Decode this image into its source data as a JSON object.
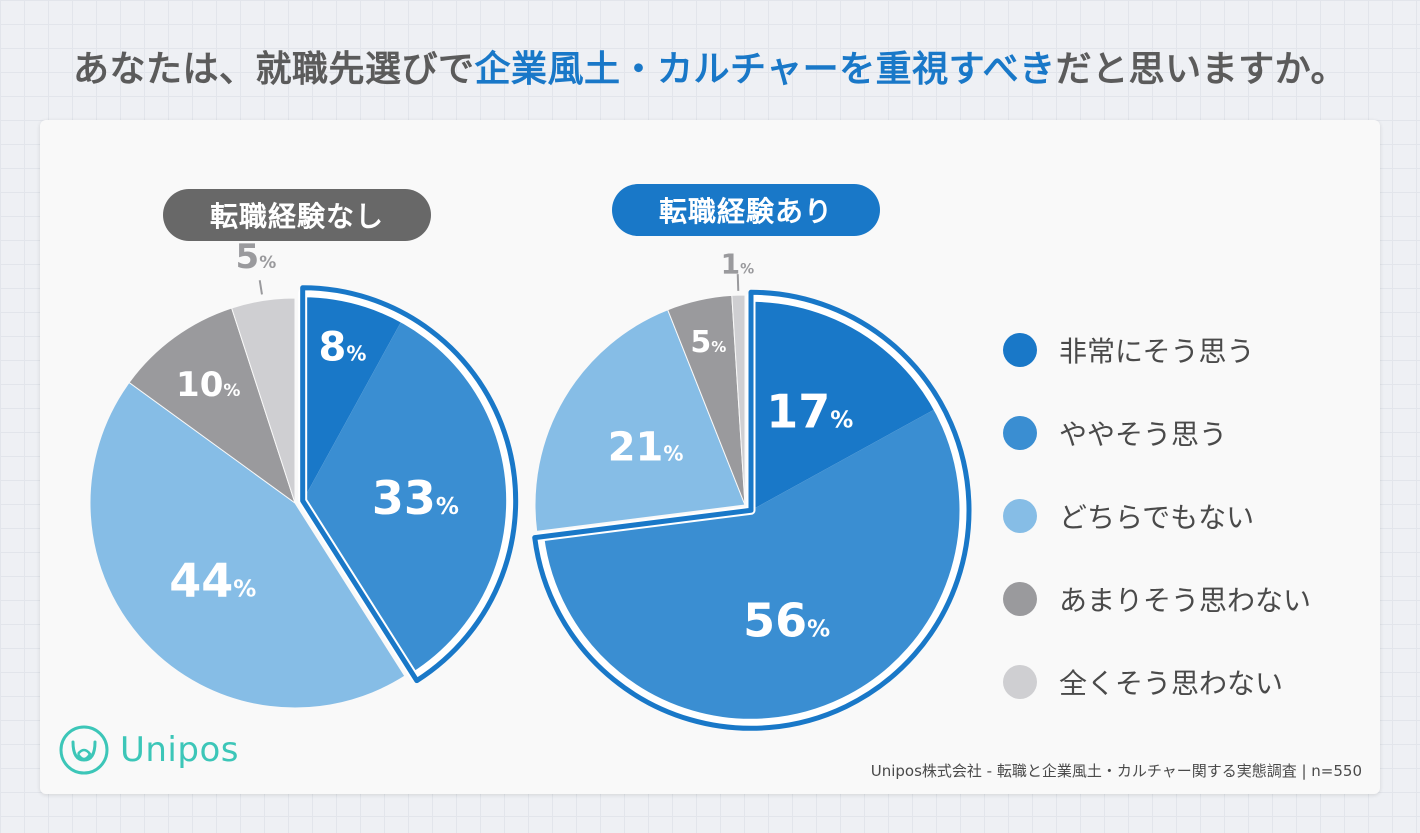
{
  "title": {
    "part1": "あなたは、就職先選びで",
    "highlight": "企業風土・カルチャーを重視すべき",
    "part2": "だと思いますか。"
  },
  "legend": [
    {
      "label": "非常にそう思う",
      "color": "#1978c8"
    },
    {
      "label": "ややそう思う",
      "color": "#3a8ed2"
    },
    {
      "label": "どちらでもない",
      "color": "#86bde6"
    },
    {
      "label": "あまりそう思わない",
      "color": "#9a9a9d"
    },
    {
      "label": "全くそう思わない",
      "color": "#cfcfd2"
    }
  ],
  "chart_data": [
    {
      "type": "pie",
      "title": "転職経験なし",
      "categories": [
        "非常にそう思う",
        "ややそう思う",
        "どちらでもない",
        "あまりそう思わない",
        "全くそう思わない"
      ],
      "values": [
        8,
        33,
        44,
        10,
        5
      ],
      "unit": "%",
      "label_text": [
        "8",
        "33",
        "44",
        "10",
        "5"
      ],
      "highlighted": [
        "非常にそう思う",
        "ややそう思う"
      ]
    },
    {
      "type": "pie",
      "title": "転職経験あり",
      "categories": [
        "非常にそう思う",
        "ややそう思う",
        "どちらでもない",
        "あまりそう思わない",
        "全くそう思わない"
      ],
      "values": [
        17,
        56,
        21,
        5,
        1
      ],
      "unit": "%",
      "label_text": [
        "17",
        "56",
        "21",
        "5",
        "1"
      ],
      "highlighted": [
        "非常にそう思う",
        "ややそう思う"
      ]
    }
  ],
  "logo": {
    "text": "Unipos"
  },
  "source": "Unipos株式会社 - 転職と企業風土・カルチャー関する実態調査 | n=550"
}
